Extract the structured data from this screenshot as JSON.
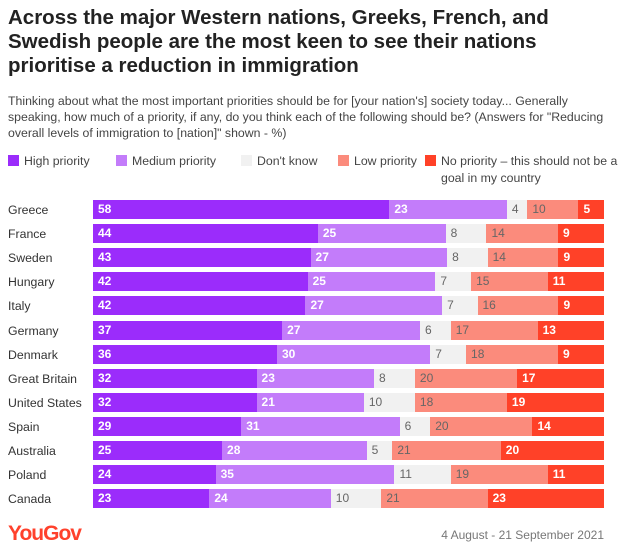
{
  "title": "Across the major Western nations, Greeks, French, and Swedish people are the most keen to see their nations prioritise a reduction in immigration",
  "subtitle": "Thinking about what the most important priorities should be for [your nation's] society today... Generally speaking, how much of a priority, if any, do you think each of the following should be? (Answers for \"Reducing overall levels of immigration to [nation]\" shown - %)",
  "footer": {
    "logo": "YouGov",
    "date": "4 August - 21 September 2021"
  },
  "chart_data": {
    "type": "bar",
    "orientation": "horizontal-stacked-100",
    "title": "Across the major Western nations, Greeks, French, and Swedish people are the most keen to see their nations prioritise a reduction in immigration",
    "categories": [
      "Greece",
      "France",
      "Sweden",
      "Hungary",
      "Italy",
      "Germany",
      "Denmark",
      "Great Britain",
      "United States",
      "Spain",
      "Australia",
      "Poland",
      "Canada"
    ],
    "series": [
      {
        "name": "High priority",
        "color": "#9b2cfb",
        "label_color": "#ffffff",
        "values": [
          58,
          44,
          43,
          42,
          42,
          37,
          36,
          32,
          32,
          29,
          25,
          24,
          23
        ]
      },
      {
        "name": "Medium priority",
        "color": "#c37cfa",
        "label_color": "#ffffff",
        "values": [
          23,
          25,
          27,
          25,
          27,
          27,
          30,
          23,
          21,
          31,
          28,
          35,
          24
        ]
      },
      {
        "name": "Don't know",
        "color": "#f1f1f1",
        "label_color": "#666666",
        "values": [
          4,
          8,
          8,
          7,
          7,
          6,
          7,
          8,
          10,
          6,
          5,
          11,
          10
        ]
      },
      {
        "name": "Low priority",
        "color": "#fb8b7c",
        "label_color": "#666666",
        "values": [
          10,
          14,
          14,
          15,
          16,
          17,
          18,
          20,
          18,
          20,
          21,
          19,
          21
        ]
      },
      {
        "name": "No priority – this should not be a goal in my country",
        "color": "#ff4128",
        "label_color": "#ffffff",
        "values": [
          5,
          9,
          9,
          11,
          9,
          13,
          9,
          17,
          19,
          14,
          20,
          11,
          23
        ]
      }
    ],
    "legend": "top",
    "xlabel": "",
    "ylabel": ""
  }
}
